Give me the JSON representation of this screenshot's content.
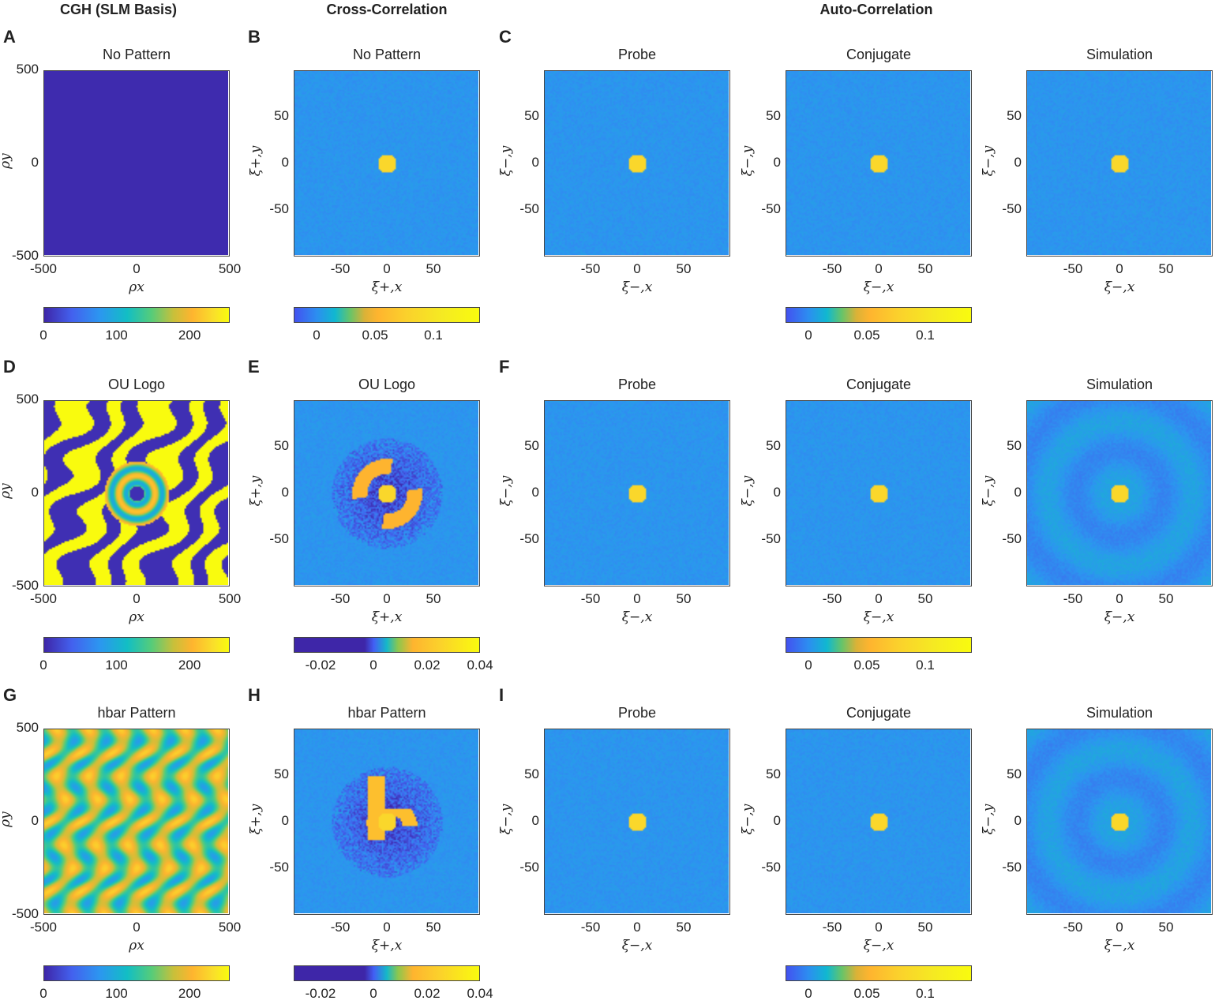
{
  "columns": {
    "cgh": "CGH (SLM Basis)",
    "cross": "Cross-Correlation",
    "auto": "Auto-Correlation"
  },
  "letters": [
    "A",
    "B",
    "C",
    "D",
    "E",
    "F",
    "G",
    "H",
    "I"
  ],
  "rows": [
    {
      "cgh_title": "No Pattern",
      "cross_title": "No Pattern",
      "auto_titles": [
        "Probe",
        "Conjugate",
        "Simulation"
      ]
    },
    {
      "cgh_title": "OU Logo",
      "cross_title": "OU Logo",
      "auto_titles": [
        "Probe",
        "Conjugate",
        "Simulation"
      ]
    },
    {
      "cgh_title": "hbar Pattern",
      "cross_title": "hbar Pattern",
      "auto_titles": [
        "Probe",
        "Conjugate",
        "Simulation"
      ]
    }
  ],
  "axes": {
    "cgh": {
      "xlabel": "ρx",
      "ylabel": "ρy",
      "xticks": [
        "-500",
        "0",
        "500"
      ],
      "yticks": [
        "500",
        "0",
        "-500"
      ]
    },
    "cross": {
      "xlabel": "ξ+,x",
      "ylabel": "ξ+,y",
      "xticks": [
        "-50",
        "0",
        "50"
      ],
      "yticks": [
        "50",
        "0",
        "-50"
      ]
    },
    "auto": {
      "xlabel": "ξ−,x",
      "ylabel": "ξ−,y",
      "xticks": [
        "-50",
        "0",
        "50"
      ],
      "yticks": [
        "50",
        "0",
        "-50"
      ]
    }
  },
  "colorbars": {
    "phase": {
      "ticks": [
        "0",
        "100",
        "200"
      ],
      "range": [
        0,
        255
      ]
    },
    "auto": {
      "ticks": [
        "0",
        "0.05",
        "0.1"
      ],
      "range": [
        -0.02,
        0.14
      ]
    },
    "cross_row1": {
      "ticks": [
        "0",
        "0.05",
        "0.1"
      ],
      "range": [
        -0.02,
        0.14
      ]
    },
    "cross_signed": {
      "ticks": [
        "-0.02",
        "0",
        "0.02",
        "0.04"
      ],
      "range": [
        -0.03,
        0.04
      ]
    }
  },
  "chart_data": {
    "type": "heatmap",
    "title": "CGH patterns and correlation measurements",
    "panels": [
      "A: CGH No Pattern",
      "B: Cross-Correlation No Pattern",
      "C: Auto-Correlation Probe/Conjugate/Simulation",
      "D: CGH OU Logo",
      "E: Cross-Correlation OU Logo",
      "F: Auto-Correlation Probe/Conjugate/Simulation",
      "G: CGH hbar Pattern",
      "H: Cross-Correlation hbar Pattern",
      "I: Auto-Correlation Probe/Conjugate/Simulation"
    ],
    "cgh_xlim": [
      -500,
      500
    ],
    "cgh_ylim": [
      -500,
      500
    ],
    "corr_xlim": [
      -95,
      95
    ],
    "corr_ylim": [
      -95,
      95
    ]
  }
}
